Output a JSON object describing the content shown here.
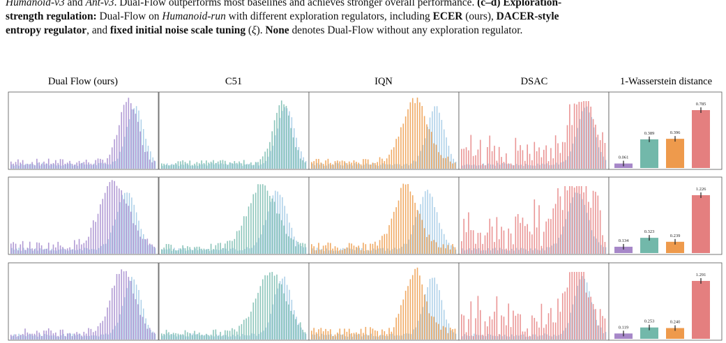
{
  "caption": {
    "line1": [
      {
        "t": "Humanoid-v3",
        "s": "i"
      },
      {
        "t": " and ",
        "s": ""
      },
      {
        "t": "Ant-v3",
        "s": "i"
      },
      {
        "t": ". Dual-Flow outperforms most baselines and achieves stronger overall performance. ",
        "s": ""
      },
      {
        "t": "(c–d) Exploration-",
        "s": "b"
      }
    ],
    "line2": [
      {
        "t": "strength regulation:",
        "s": "b"
      },
      {
        "t": " Dual-Flow on ",
        "s": ""
      },
      {
        "t": "Humanoid-run",
        "s": "i"
      },
      {
        "t": " with different exploration regulators, including ",
        "s": ""
      },
      {
        "t": "ECER",
        "s": "b"
      },
      {
        "t": " (ours), ",
        "s": ""
      },
      {
        "t": "DACER-style",
        "s": "b"
      }
    ],
    "line3": [
      {
        "t": "entropy regulator",
        "s": "b"
      },
      {
        "t": ", and ",
        "s": ""
      },
      {
        "t": "fixed initial noise scale tuning",
        "s": "b"
      },
      {
        "t": " (",
        "s": ""
      },
      {
        "t": "ξ",
        "s": "i"
      },
      {
        "t": "). ",
        "s": ""
      },
      {
        "t": "None",
        "s": "b"
      },
      {
        "t": " denotes Dual-Flow without any exploration regulator.",
        "s": ""
      }
    ]
  },
  "column_titles": [
    "Dual Flow (ours)",
    "C51",
    "IQN",
    "DSAC",
    "1-Wasserstein distance"
  ],
  "colors": {
    "dual_flow": "#a98fcf",
    "c51": "#7fbfb2",
    "iqn": "#eea052",
    "dsac": "#e88a8a",
    "true_dist": "#8fbfe0",
    "bar_purple": "#a687c8",
    "bar_teal": "#72b8aa",
    "bar_orange": "#ee9a4c",
    "bar_red": "#e47f7f"
  },
  "chart_data": {
    "type": "bar",
    "ylabel": "",
    "categories": [
      "Dual Flow (ours)",
      "C51",
      "IQN",
      "DSAC"
    ],
    "rows": [
      {
        "values": [
          0.061,
          0.389,
          0.396,
          0.785
        ],
        "labels": [
          "0.061",
          "0.389",
          "0.396",
          "0.785"
        ]
      },
      {
        "values": [
          0.134,
          0.323,
          0.239,
          1.226
        ],
        "labels": [
          "0.134",
          "0.323",
          "0.239",
          "1.226"
        ]
      },
      {
        "values": [
          0.119,
          0.253,
          0.24,
          1.291
        ],
        "labels": [
          "0.119",
          "0.253",
          "0.240",
          "1.291"
        ]
      }
    ]
  }
}
